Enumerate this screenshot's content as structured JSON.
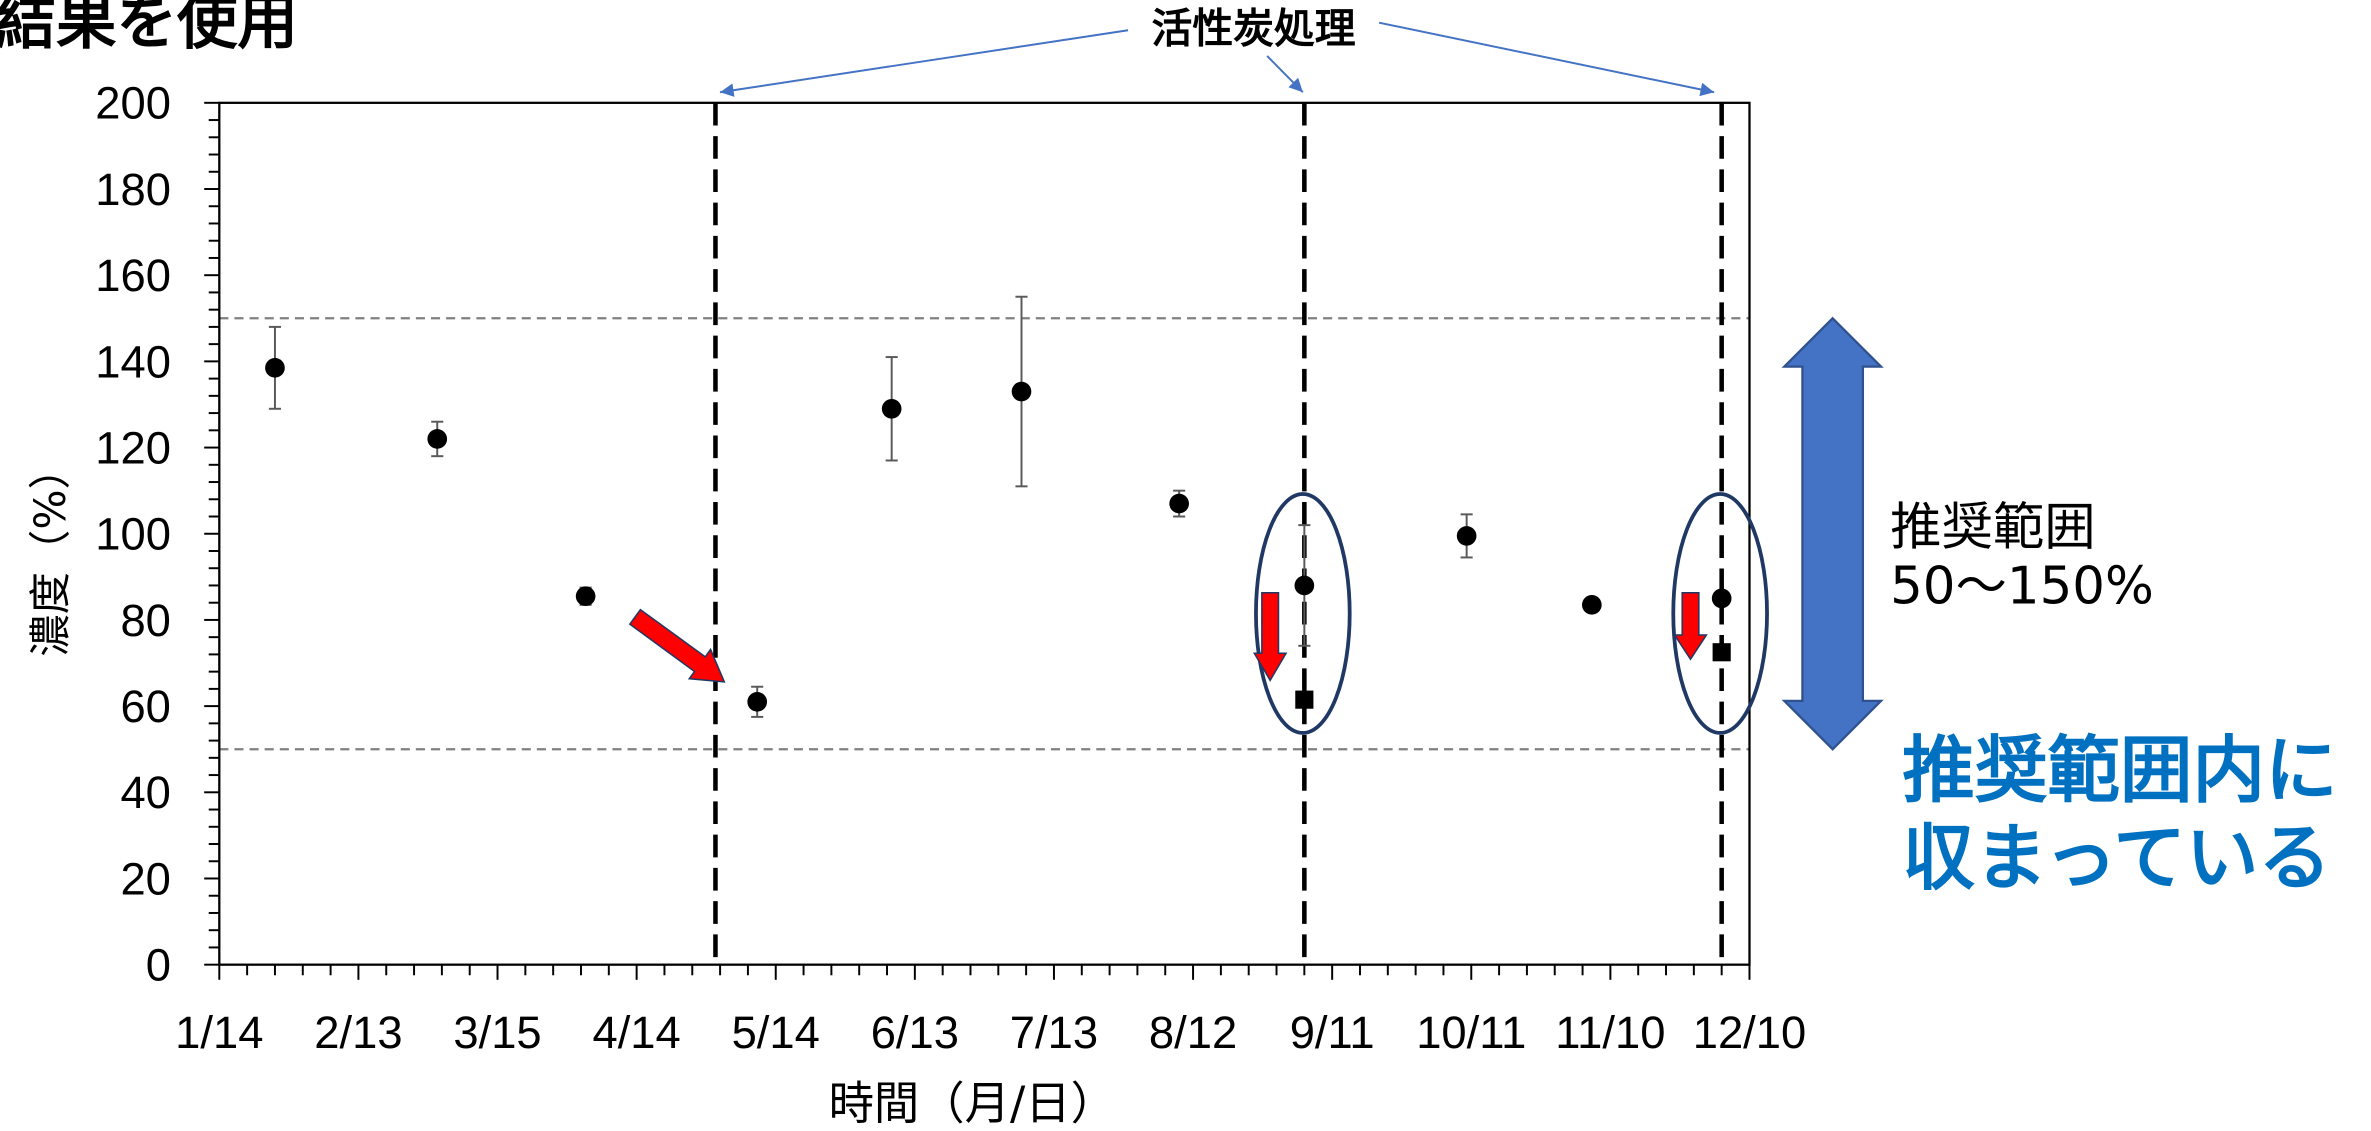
{
  "heading": "結果を使用",
  "chart_data": {
    "type": "scatter",
    "xlabel": "時間（月/日）",
    "ylabel": "濃度（%）",
    "xlim": [
      "1/14",
      "12/10"
    ],
    "xticks": [
      "1/14",
      "2/13",
      "3/15",
      "4/14",
      "5/14",
      "6/13",
      "7/13",
      "8/12",
      "9/11",
      "10/11",
      "11/10",
      "12/10"
    ],
    "ylim": [
      0,
      200
    ],
    "yticks": [
      0,
      20,
      40,
      60,
      80,
      100,
      120,
      140,
      160,
      180,
      200
    ],
    "grid": false,
    "legend": "none",
    "series": [
      {
        "marker": "circle",
        "color": "#000000",
        "points": [
          {
            "x": "1/26",
            "y": 138.5,
            "err": 9.5
          },
          {
            "x": "3/2",
            "y": 122,
            "err": 4
          },
          {
            "x": "4/3",
            "y": 85.5,
            "err": 2
          },
          {
            "x": "5/10",
            "y": 61,
            "err": 3.5
          },
          {
            "x": "6/8",
            "y": 129,
            "err": 12
          },
          {
            "x": "7/6",
            "y": 133,
            "err": 22
          },
          {
            "x": "8/9",
            "y": 107,
            "err": 3
          },
          {
            "x": "9/5",
            "y": 88,
            "err": 14
          },
          {
            "x": "10/10",
            "y": 99.5,
            "err": 5
          },
          {
            "x": "11/6",
            "y": 83.5
          },
          {
            "x": "12/4",
            "y": 85
          }
        ]
      },
      {
        "marker": "square",
        "color": "#000000",
        "points": [
          {
            "x": "9/5",
            "y": 61.5
          },
          {
            "x": "12/4",
            "y": 72.5
          }
        ]
      }
    ],
    "error_bar_color": "#595959",
    "reference_lines": {
      "y": [
        50,
        150
      ],
      "color": "#808080"
    },
    "treatment": {
      "label": "活性炭処理",
      "x": [
        "5/1",
        "9/5",
        "12/4"
      ],
      "line_color": "#000000",
      "pointer_color": "#4472C4"
    },
    "circled_x": [
      "9/5",
      "12/4"
    ],
    "circle_color": "#1F3864",
    "red_arrow_color": "#FF0000",
    "recommended_range": {
      "label": "推奨範囲",
      "range_text": "50～150%",
      "from": 50,
      "to": 150,
      "arrow_color": "#4472C4"
    },
    "conclusion": {
      "lines": [
        "推奨範囲内に",
        "収まっている"
      ],
      "color": "#0070C0"
    }
  }
}
